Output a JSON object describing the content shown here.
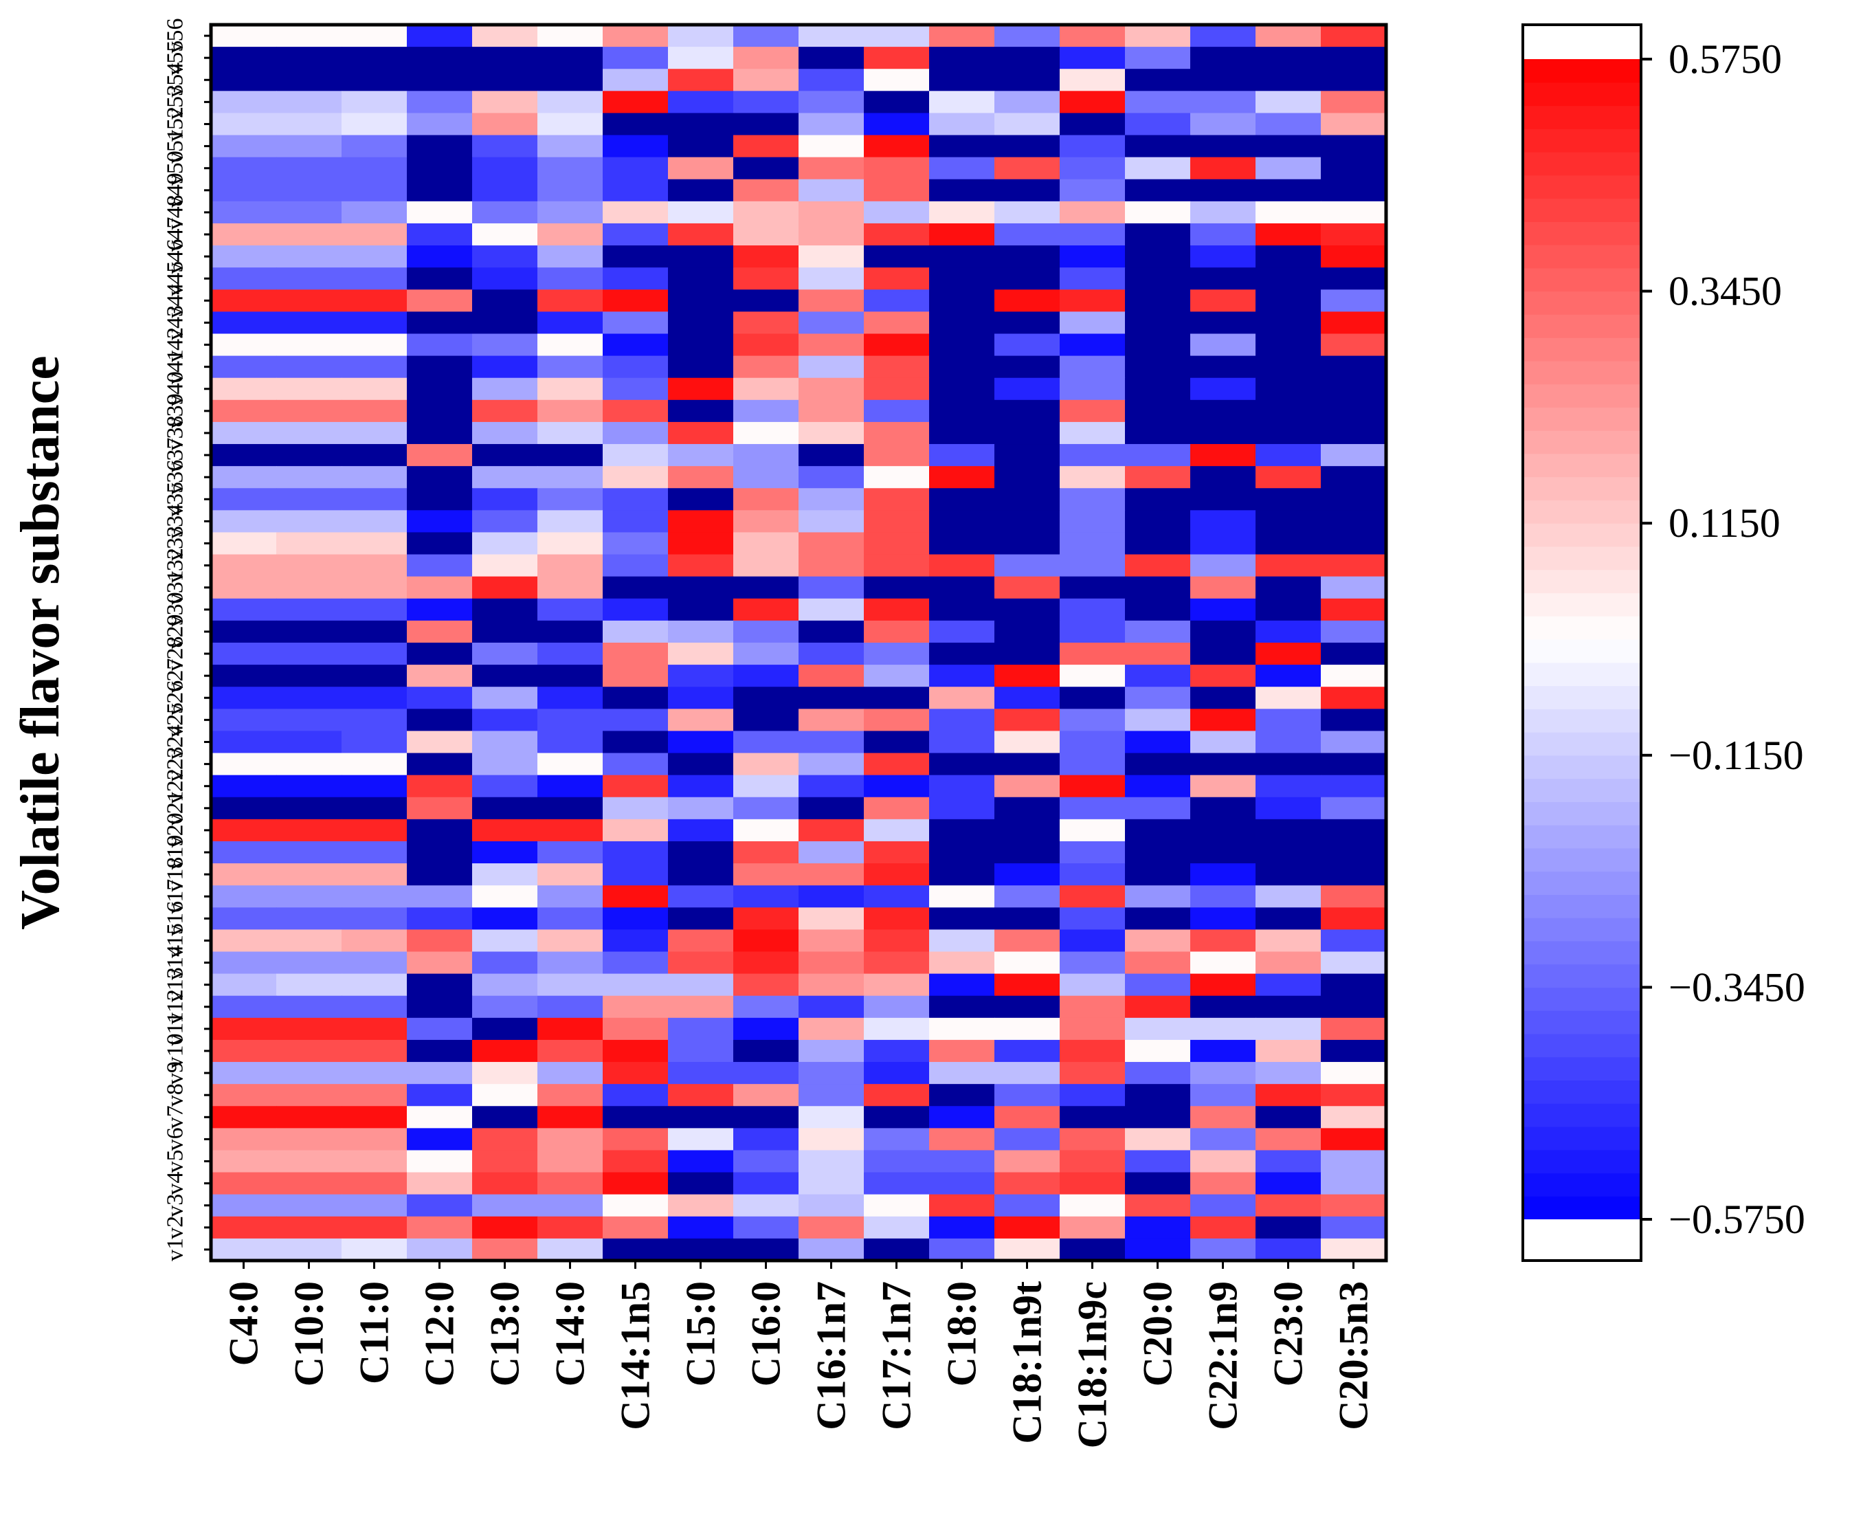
{
  "chart_data": {
    "type": "heatmap",
    "ylabel": "Volatile flavor substance",
    "xlabel": "",
    "columns": [
      "C4:0",
      "C10:0",
      "C11:0",
      "C12:0",
      "C13:0",
      "C14:0",
      "C14:1n5",
      "C15:0",
      "C16:0",
      "C16:1n7",
      "C17:1n7",
      "C18:0",
      "C18:1n9t",
      "C18:1n9c",
      "C20:0",
      "C22:1n9",
      "C23:0",
      "C20:5n3"
    ],
    "rows": [
      "v56",
      "v55",
      "v54",
      "v53",
      "v52",
      "v51",
      "v50",
      "v49",
      "v48",
      "v47",
      "v46",
      "v45",
      "v44",
      "v43",
      "v42",
      "v41",
      "v40",
      "v39",
      "v38",
      "v37",
      "v36",
      "v35",
      "v34",
      "v33",
      "v32",
      "v31",
      "v30",
      "v29",
      "v28",
      "v27",
      "v26",
      "v25",
      "v24",
      "v23",
      "v22",
      "v21",
      "v20",
      "v19",
      "v18",
      "v17",
      "v16",
      "v15",
      "v14",
      "v13",
      "v12",
      "v11",
      "v10",
      "v9",
      "v8",
      "v7",
      "v6",
      "v5",
      "v4",
      "v3",
      "v2",
      "v1"
    ],
    "values": [
      [
        0.0,
        0.0,
        0.0,
        -0.5,
        0.1,
        0.0,
        0.25,
        -0.1,
        -0.3,
        -0.1,
        -0.1,
        0.3,
        -0.3,
        0.3,
        0.15,
        -0.4,
        0.25,
        0.45
      ],
      [
        -0.75,
        -0.75,
        -0.75,
        -0.75,
        -0.75,
        -0.75,
        -0.35,
        -0.05,
        0.25,
        -0.75,
        0.45,
        -0.75,
        -0.75,
        -0.5,
        -0.3,
        -0.75,
        -0.75,
        -0.75
      ],
      [
        -0.75,
        -0.75,
        -0.75,
        -0.75,
        -0.75,
        -0.75,
        -0.15,
        0.45,
        0.2,
        -0.4,
        0.0,
        -0.75,
        -0.75,
        0.05,
        -0.75,
        -0.75,
        -0.75,
        -0.75
      ],
      [
        -0.15,
        -0.15,
        -0.1,
        -0.3,
        0.15,
        -0.1,
        0.55,
        -0.45,
        -0.4,
        -0.3,
        -0.75,
        -0.05,
        -0.2,
        0.55,
        -0.3,
        -0.3,
        -0.1,
        0.3
      ],
      [
        -0.1,
        -0.1,
        -0.05,
        -0.25,
        0.25,
        -0.05,
        -0.75,
        -0.75,
        -0.75,
        -0.2,
        -0.55,
        -0.15,
        -0.1,
        -0.75,
        -0.4,
        -0.25,
        -0.3,
        0.2
      ],
      [
        -0.25,
        -0.25,
        -0.3,
        -0.75,
        -0.4,
        -0.2,
        -0.55,
        -0.75,
        0.45,
        0.0,
        0.55,
        -0.75,
        -0.75,
        -0.4,
        -0.75,
        -0.75,
        -0.75,
        -0.75
      ],
      [
        -0.35,
        -0.35,
        -0.35,
        -0.75,
        -0.45,
        -0.3,
        -0.45,
        0.25,
        -0.75,
        0.3,
        0.35,
        -0.35,
        0.4,
        -0.35,
        -0.1,
        0.5,
        -0.2,
        -0.75
      ],
      [
        -0.35,
        -0.35,
        -0.35,
        -0.75,
        -0.45,
        -0.3,
        -0.45,
        -0.75,
        0.3,
        -0.15,
        0.35,
        -0.75,
        -0.75,
        -0.3,
        -0.75,
        -0.75,
        -0.75,
        -0.75
      ],
      [
        -0.3,
        -0.3,
        -0.25,
        0.0,
        -0.3,
        -0.25,
        0.1,
        -0.05,
        0.15,
        0.2,
        -0.15,
        0.05,
        -0.1,
        0.2,
        0.0,
        -0.15,
        0.0,
        0.0
      ],
      [
        0.2,
        0.2,
        0.2,
        -0.45,
        0.0,
        0.2,
        -0.4,
        0.45,
        0.15,
        0.2,
        0.45,
        0.55,
        -0.35,
        -0.35,
        -0.75,
        -0.35,
        0.55,
        0.5
      ],
      [
        -0.2,
        -0.2,
        -0.2,
        -0.55,
        -0.45,
        -0.2,
        -0.75,
        -0.75,
        0.5,
        0.05,
        -0.75,
        -0.75,
        -0.75,
        -0.55,
        -0.75,
        -0.5,
        -0.75,
        0.55
      ],
      [
        -0.35,
        -0.35,
        -0.35,
        -0.75,
        -0.5,
        -0.35,
        -0.45,
        -0.75,
        0.45,
        -0.1,
        0.45,
        -0.75,
        -0.75,
        -0.4,
        -0.75,
        -0.75,
        -0.75,
        -0.75
      ],
      [
        0.5,
        0.5,
        0.5,
        0.3,
        -0.75,
        0.45,
        0.55,
        -0.75,
        -0.75,
        0.3,
        -0.4,
        -0.75,
        0.55,
        0.5,
        -0.75,
        0.45,
        -0.75,
        -0.3
      ],
      [
        -0.5,
        -0.5,
        -0.5,
        -0.75,
        -0.75,
        -0.5,
        -0.3,
        -0.75,
        0.4,
        -0.3,
        0.3,
        -0.75,
        -0.75,
        -0.2,
        -0.75,
        -0.75,
        -0.75,
        0.55
      ],
      [
        0.0,
        0.0,
        0.0,
        -0.35,
        -0.3,
        0.0,
        -0.55,
        -0.75,
        0.45,
        0.3,
        0.55,
        -0.75,
        -0.4,
        -0.55,
        -0.75,
        -0.25,
        -0.75,
        0.4
      ],
      [
        -0.35,
        -0.35,
        -0.35,
        -0.75,
        -0.5,
        -0.3,
        -0.4,
        -0.75,
        0.3,
        -0.15,
        0.4,
        -0.75,
        -0.75,
        -0.3,
        -0.75,
        -0.75,
        -0.75,
        -0.75
      ],
      [
        0.1,
        0.1,
        0.1,
        -0.75,
        -0.2,
        0.1,
        -0.35,
        0.55,
        0.15,
        0.25,
        0.4,
        -0.75,
        -0.5,
        -0.3,
        -0.75,
        -0.5,
        -0.75,
        -0.75
      ],
      [
        0.3,
        0.3,
        0.3,
        -0.75,
        0.4,
        0.25,
        0.4,
        -0.75,
        -0.25,
        0.25,
        -0.35,
        -0.75,
        -0.75,
        0.35,
        -0.75,
        -0.75,
        -0.75,
        -0.75
      ],
      [
        -0.15,
        -0.15,
        -0.15,
        -0.75,
        -0.2,
        -0.1,
        -0.25,
        0.45,
        0.0,
        0.1,
        0.3,
        -0.75,
        -0.75,
        -0.1,
        -0.75,
        -0.75,
        -0.75,
        -0.75
      ],
      [
        -0.75,
        -0.75,
        -0.75,
        0.3,
        -0.75,
        -0.75,
        -0.1,
        -0.2,
        -0.25,
        -0.75,
        0.3,
        -0.4,
        -0.75,
        -0.35,
        -0.35,
        0.55,
        -0.45,
        -0.2
      ],
      [
        -0.2,
        -0.2,
        -0.2,
        -0.75,
        -0.2,
        -0.2,
        0.1,
        0.3,
        -0.25,
        -0.35,
        0.0,
        0.55,
        -0.75,
        0.1,
        0.4,
        -0.75,
        0.45,
        -0.75
      ],
      [
        -0.35,
        -0.35,
        -0.35,
        -0.75,
        -0.45,
        -0.3,
        -0.4,
        -0.75,
        0.3,
        -0.2,
        0.4,
        -0.75,
        -0.75,
        -0.3,
        -0.75,
        -0.75,
        -0.75,
        -0.75
      ],
      [
        -0.15,
        -0.15,
        -0.15,
        -0.55,
        -0.35,
        -0.1,
        -0.4,
        0.55,
        0.25,
        -0.15,
        0.4,
        -0.75,
        -0.75,
        -0.3,
        -0.75,
        -0.5,
        -0.75,
        -0.75
      ],
      [
        0.05,
        0.1,
        0.1,
        -0.75,
        -0.1,
        0.05,
        -0.3,
        0.55,
        0.15,
        0.3,
        0.4,
        -0.75,
        -0.75,
        -0.3,
        -0.75,
        -0.5,
        -0.75,
        -0.75
      ],
      [
        0.2,
        0.2,
        0.2,
        -0.35,
        0.05,
        0.2,
        -0.35,
        0.45,
        0.15,
        0.3,
        0.4,
        0.45,
        -0.3,
        -0.3,
        0.45,
        -0.25,
        0.45,
        0.45
      ],
      [
        0.2,
        0.2,
        0.2,
        0.25,
        0.5,
        0.2,
        -0.75,
        -0.75,
        -0.75,
        -0.35,
        -0.75,
        -0.75,
        0.4,
        -0.75,
        -0.75,
        0.3,
        -0.75,
        -0.2
      ],
      [
        -0.4,
        -0.4,
        -0.4,
        -0.55,
        -0.75,
        -0.4,
        -0.5,
        -0.75,
        0.5,
        -0.1,
        0.5,
        -0.75,
        -0.75,
        -0.4,
        -0.75,
        -0.55,
        -0.75,
        0.5
      ],
      [
        -0.75,
        -0.75,
        -0.75,
        0.3,
        -0.75,
        -0.75,
        -0.15,
        -0.2,
        -0.3,
        -0.75,
        0.35,
        -0.4,
        -0.75,
        -0.4,
        -0.3,
        -0.75,
        -0.5,
        -0.3
      ],
      [
        -0.4,
        -0.4,
        -0.4,
        -0.75,
        -0.3,
        -0.4,
        0.3,
        0.1,
        -0.25,
        -0.4,
        -0.3,
        -0.75,
        -0.75,
        0.35,
        0.35,
        -0.75,
        0.55,
        -0.75
      ],
      [
        -0.75,
        -0.75,
        -0.75,
        0.2,
        -0.75,
        -0.75,
        0.3,
        -0.45,
        -0.5,
        0.35,
        -0.2,
        -0.5,
        0.55,
        0.0,
        -0.45,
        0.45,
        -0.55,
        0.0
      ],
      [
        -0.5,
        -0.5,
        -0.5,
        -0.45,
        -0.2,
        -0.5,
        -0.75,
        -0.5,
        -0.75,
        -0.75,
        -0.75,
        0.2,
        -0.5,
        -0.75,
        -0.3,
        -0.75,
        0.05,
        0.5
      ],
      [
        -0.4,
        -0.4,
        -0.4,
        -0.75,
        -0.45,
        -0.4,
        -0.4,
        0.2,
        -0.75,
        0.25,
        0.3,
        -0.4,
        0.45,
        -0.3,
        -0.15,
        0.55,
        -0.35,
        -0.75
      ],
      [
        -0.45,
        -0.45,
        -0.4,
        0.1,
        -0.2,
        -0.4,
        -0.75,
        -0.55,
        -0.35,
        -0.35,
        -0.75,
        -0.4,
        0.05,
        -0.35,
        -0.55,
        -0.15,
        -0.35,
        -0.25
      ],
      [
        0.0,
        0.0,
        0.0,
        -0.75,
        -0.2,
        0.0,
        -0.35,
        -0.75,
        0.15,
        -0.2,
        0.45,
        -0.75,
        -0.75,
        -0.35,
        -0.75,
        -0.75,
        -0.75,
        -0.75
      ],
      [
        -0.55,
        -0.55,
        -0.55,
        0.45,
        -0.4,
        -0.55,
        0.45,
        -0.5,
        -0.1,
        -0.45,
        -0.55,
        -0.45,
        0.25,
        0.55,
        -0.55,
        0.2,
        -0.45,
        -0.45
      ],
      [
        -0.75,
        -0.75,
        -0.75,
        0.35,
        -0.75,
        -0.75,
        -0.15,
        -0.2,
        -0.3,
        -0.75,
        0.3,
        -0.45,
        -0.75,
        -0.35,
        -0.35,
        -0.75,
        -0.5,
        -0.3
      ],
      [
        0.5,
        0.5,
        0.5,
        -0.75,
        0.5,
        0.5,
        0.15,
        -0.5,
        0.0,
        0.45,
        -0.1,
        -0.75,
        -0.75,
        0.0,
        -0.75,
        -0.75,
        -0.75,
        -0.75
      ],
      [
        -0.35,
        -0.35,
        -0.35,
        -0.75,
        -0.55,
        -0.35,
        -0.45,
        -0.75,
        0.4,
        -0.2,
        0.45,
        -0.75,
        -0.75,
        -0.35,
        -0.75,
        -0.75,
        -0.75,
        -0.75
      ],
      [
        0.2,
        0.2,
        0.2,
        -0.75,
        -0.1,
        0.15,
        -0.45,
        -0.75,
        0.3,
        0.3,
        0.5,
        -0.75,
        -0.55,
        -0.4,
        -0.75,
        -0.55,
        -0.75,
        -0.75
      ],
      [
        -0.25,
        -0.25,
        -0.25,
        -0.25,
        0.0,
        -0.25,
        0.55,
        -0.4,
        -0.45,
        -0.5,
        -0.45,
        0.0,
        -0.3,
        0.45,
        -0.25,
        -0.35,
        -0.15,
        0.35
      ],
      [
        -0.35,
        -0.35,
        -0.35,
        -0.45,
        -0.55,
        -0.35,
        -0.55,
        -0.75,
        0.5,
        0.1,
        0.5,
        -0.75,
        -0.75,
        -0.4,
        -0.75,
        -0.55,
        -0.75,
        0.5
      ],
      [
        0.15,
        0.15,
        0.2,
        0.35,
        -0.1,
        0.15,
        -0.5,
        0.35,
        0.55,
        0.25,
        0.45,
        -0.1,
        0.3,
        -0.5,
        0.2,
        0.4,
        0.15,
        -0.4
      ],
      [
        -0.25,
        -0.25,
        -0.25,
        0.25,
        -0.35,
        -0.25,
        -0.35,
        0.4,
        0.5,
        0.3,
        0.4,
        0.15,
        0.0,
        -0.3,
        0.3,
        0.0,
        0.25,
        -0.1
      ],
      [
        -0.15,
        -0.1,
        -0.1,
        -0.75,
        -0.2,
        -0.15,
        -0.15,
        -0.15,
        0.4,
        0.25,
        0.2,
        -0.55,
        0.55,
        -0.15,
        -0.35,
        0.55,
        -0.45,
        -0.75
      ],
      [
        -0.35,
        -0.35,
        -0.35,
        -0.75,
        -0.3,
        -0.35,
        0.25,
        0.25,
        -0.3,
        -0.45,
        -0.25,
        -0.75,
        -0.75,
        0.3,
        0.5,
        -0.75,
        -0.75,
        -0.75
      ],
      [
        0.5,
        0.5,
        0.5,
        -0.35,
        -0.75,
        0.55,
        0.3,
        -0.35,
        -0.55,
        0.2,
        -0.05,
        0.0,
        0.0,
        0.3,
        -0.1,
        -0.1,
        -0.1,
        0.35
      ],
      [
        0.4,
        0.4,
        0.4,
        -0.75,
        0.55,
        0.4,
        0.55,
        -0.35,
        -0.75,
        -0.2,
        -0.45,
        0.3,
        -0.45,
        0.45,
        0.0,
        -0.55,
        0.15,
        -0.75
      ],
      [
        -0.2,
        -0.2,
        -0.2,
        -0.2,
        0.05,
        -0.2,
        0.5,
        -0.4,
        -0.4,
        -0.3,
        -0.5,
        -0.15,
        -0.15,
        0.4,
        -0.35,
        -0.25,
        -0.2,
        0.0
      ],
      [
        0.3,
        0.3,
        0.3,
        -0.45,
        0.0,
        0.3,
        -0.45,
        0.45,
        0.25,
        -0.3,
        0.45,
        -0.75,
        -0.35,
        -0.45,
        -0.75,
        -0.3,
        0.5,
        0.45
      ],
      [
        0.55,
        0.55,
        0.55,
        0.0,
        -0.75,
        0.55,
        -0.75,
        -0.75,
        -0.75,
        -0.05,
        -0.75,
        -0.55,
        0.35,
        -0.75,
        -0.75,
        0.3,
        -0.75,
        0.1
      ],
      [
        0.25,
        0.25,
        0.25,
        -0.55,
        0.4,
        0.25,
        0.35,
        -0.05,
        -0.45,
        0.05,
        -0.3,
        0.3,
        -0.35,
        0.35,
        0.1,
        -0.3,
        0.3,
        0.55
      ],
      [
        0.2,
        0.2,
        0.2,
        0.0,
        0.4,
        0.25,
        0.45,
        -0.55,
        -0.35,
        -0.1,
        -0.35,
        -0.35,
        0.25,
        0.4,
        -0.4,
        0.15,
        -0.4,
        -0.2
      ],
      [
        0.35,
        0.35,
        0.35,
        0.15,
        0.45,
        0.35,
        0.55,
        -0.75,
        -0.45,
        -0.1,
        -0.4,
        -0.4,
        0.4,
        0.45,
        -0.75,
        0.3,
        -0.55,
        -0.2
      ],
      [
        -0.25,
        -0.25,
        -0.25,
        -0.4,
        -0.25,
        -0.25,
        0.0,
        0.15,
        -0.1,
        -0.15,
        0.0,
        0.45,
        -0.35,
        0.0,
        0.4,
        -0.35,
        0.4,
        0.35
      ],
      [
        0.45,
        0.45,
        0.45,
        0.3,
        0.55,
        0.45,
        0.3,
        -0.55,
        -0.35,
        0.3,
        -0.1,
        -0.55,
        0.55,
        0.25,
        -0.55,
        0.45,
        -0.75,
        -0.35
      ],
      [
        -0.1,
        -0.1,
        -0.05,
        -0.15,
        0.3,
        -0.1,
        -0.75,
        -0.75,
        -0.75,
        -0.2,
        -0.75,
        -0.35,
        0.05,
        -0.75,
        -0.55,
        -0.3,
        -0.45,
        0.05
      ]
    ],
    "colorbar": {
      "ticks": [
        0.575,
        0.345,
        0.115,
        -0.115,
        -0.345,
        -0.575
      ],
      "tick_labels": [
        "0.5750",
        "0.3450",
        "0.1150",
        "−0.1150",
        "−0.3450",
        "−0.5750"
      ],
      "range": [
        -0.575,
        0.575
      ],
      "levels": 50,
      "colors": {
        "low": "#0000ff",
        "mid": "#ffffff",
        "high": "#ff0000",
        "under": "#000099",
        "over": "#ffffff"
      }
    },
    "grid": false,
    "legend": "colorbar-right"
  }
}
